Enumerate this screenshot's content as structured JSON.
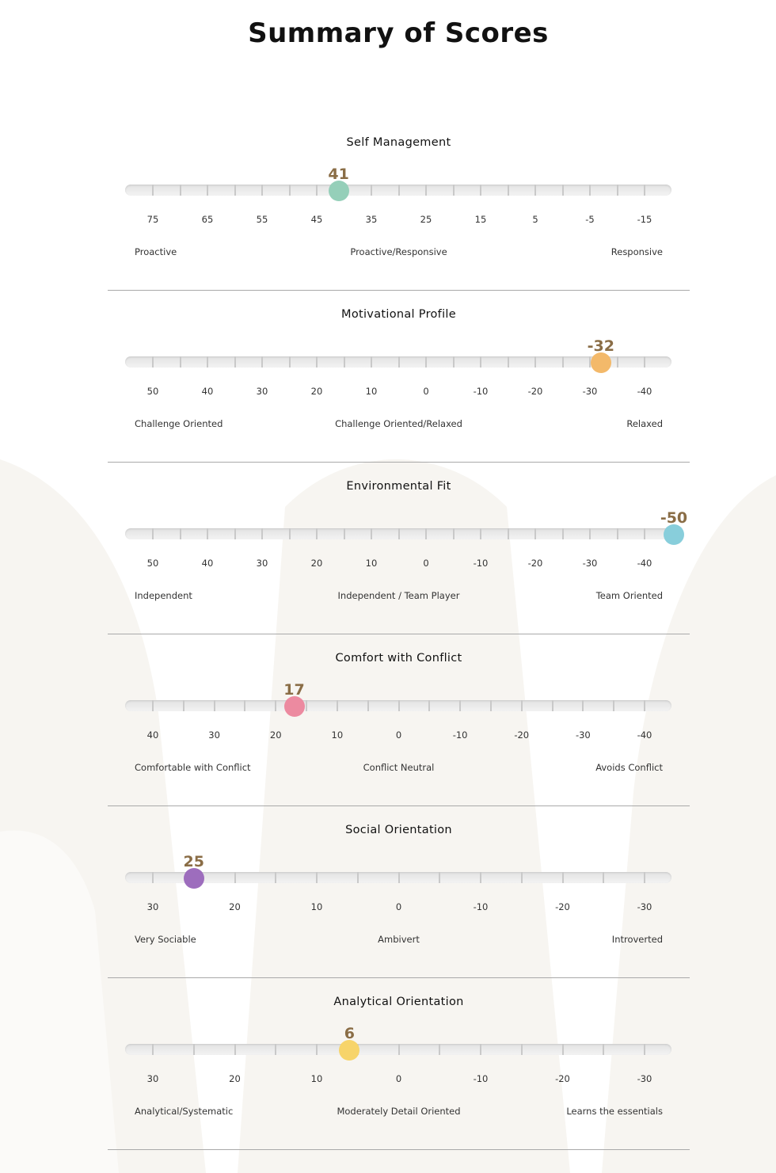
{
  "page_title": "Summary of Scores",
  "sections": [
    {
      "title": "Self Management",
      "score": "41",
      "score_value": 41,
      "color": "#95cfb9",
      "ticks": [
        "75",
        "65",
        "55",
        "45",
        "35",
        "25",
        "15",
        "5",
        "-5",
        "-15"
      ],
      "scale": {
        "left_tick_value": 75,
        "tick_step": -10
      },
      "minor_divisions": 2,
      "poles": {
        "left": "Proactive",
        "middle": "Proactive/Responsive",
        "right": "Responsive"
      }
    },
    {
      "title": "Motivational Profile",
      "score": "-32",
      "score_value": -32,
      "color": "#f3b96a",
      "ticks": [
        "50",
        "40",
        "30",
        "20",
        "10",
        "0",
        "-10",
        "-20",
        "-30",
        "-40"
      ],
      "scale": {
        "left_tick_value": 50,
        "tick_step": -10
      },
      "minor_divisions": 2,
      "poles": {
        "left": "Challenge Oriented",
        "middle": "Challenge Oriented/Relaxed",
        "right": "Relaxed"
      }
    },
    {
      "title": "Environmental Fit",
      "score": "-50",
      "score_value": -50,
      "color": "#88cedb",
      "ticks": [
        "50",
        "40",
        "30",
        "20",
        "10",
        "0",
        "-10",
        "-20",
        "-30",
        "-40"
      ],
      "scale": {
        "left_tick_value": 50,
        "tick_step": -10
      },
      "minor_divisions": 2,
      "poles": {
        "left": "Independent",
        "middle": "Independent / Team Player",
        "right": "Team Oriented"
      }
    },
    {
      "title": "Comfort with Conflict",
      "score": "17",
      "score_value": 17,
      "color": "#ec8aa0",
      "ticks": [
        "40",
        "30",
        "20",
        "10",
        "0",
        "-10",
        "-20",
        "-30",
        "-40"
      ],
      "scale": {
        "left_tick_value": 40,
        "tick_step": -10
      },
      "minor_divisions": 2,
      "poles": {
        "left": "Comfortable with Conflict",
        "middle": "Conflict Neutral",
        "right": "Avoids Conflict"
      }
    },
    {
      "title": "Social Orientation",
      "score": "25",
      "score_value": 25,
      "color": "#9d6dbd",
      "ticks": [
        "30",
        "20",
        "10",
        "0",
        "-10",
        "-20",
        "-30"
      ],
      "scale": {
        "left_tick_value": 30,
        "tick_step": -10
      },
      "minor_divisions": 2,
      "poles": {
        "left": "Very Sociable",
        "middle": "Ambivert",
        "right": "Introverted"
      }
    },
    {
      "title": "Analytical Orientation",
      "score": "6",
      "score_value": 6,
      "color": "#f7d46a",
      "ticks": [
        "30",
        "20",
        "10",
        "0",
        "-10",
        "-20",
        "-30"
      ],
      "scale": {
        "left_tick_value": 30,
        "tick_step": -10
      },
      "minor_divisions": 2,
      "poles": {
        "left": "Analytical/Systematic",
        "middle": "Moderately Detail Oriented",
        "right": "Learns the essentials"
      }
    }
  ]
}
